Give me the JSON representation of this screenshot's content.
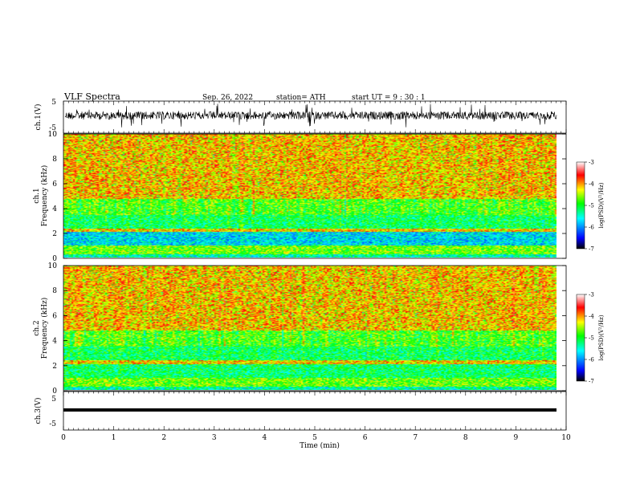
{
  "header": {
    "title": "VLF  Spectra",
    "date": "Sep. 26, 2022",
    "station": "station= ATH",
    "start": "start  UT  =   9  : 30 : 1"
  },
  "chart_data": [
    {
      "type": "line",
      "name": "ch1-waveform",
      "ylabel": "ch.1(V)",
      "ylim": [
        -5,
        5
      ],
      "yticks": [
        "5",
        "-5"
      ],
      "xlim": [
        0,
        10
      ]
    },
    {
      "type": "heatmap",
      "name": "ch1-spectrogram",
      "ylabel_channel": "ch.1",
      "ylabel": "Frequency  (kHz)",
      "ylim": [
        0,
        10
      ],
      "yticks": [
        "0",
        "2",
        "4",
        "6",
        "8",
        "10"
      ],
      "xlim": [
        0,
        9.8
      ],
      "colorbar": {
        "label": "log(PSD)(V²/Hz)",
        "range": [
          -7,
          -3
        ],
        "ticks": [
          "-3",
          "-4",
          "-5",
          "-6",
          "-7"
        ]
      }
    },
    {
      "type": "heatmap",
      "name": "ch2-spectrogram",
      "ylabel_channel": "ch.2",
      "ylabel": "Frequency  (kHz)",
      "ylim": [
        0,
        10
      ],
      "yticks": [
        "0",
        "2",
        "4",
        "6",
        "8",
        "10"
      ],
      "xlim": [
        0,
        9.8
      ],
      "colorbar": {
        "label": "log(PSD)(V²/Hz)",
        "range": [
          -7,
          -3
        ],
        "ticks": [
          "-3",
          "-4",
          "-5",
          "-6",
          "-7"
        ]
      }
    },
    {
      "type": "line",
      "name": "ch3-waveform",
      "ylabel": "ch.3(V)",
      "ylim": [
        -5,
        5
      ],
      "yticks": [
        "5",
        "-5"
      ],
      "xlim": [
        0,
        10
      ],
      "xlabel": "Time  (min)",
      "xticks": [
        "0",
        "1",
        "2",
        "3",
        "4",
        "5",
        "6",
        "7",
        "8",
        "9",
        "10"
      ]
    }
  ],
  "colors": {
    "scale": [
      "#000000",
      "#0000ff",
      "#00ffff",
      "#00ff00",
      "#ffff00",
      "#ff0000",
      "#ffffff"
    ]
  }
}
